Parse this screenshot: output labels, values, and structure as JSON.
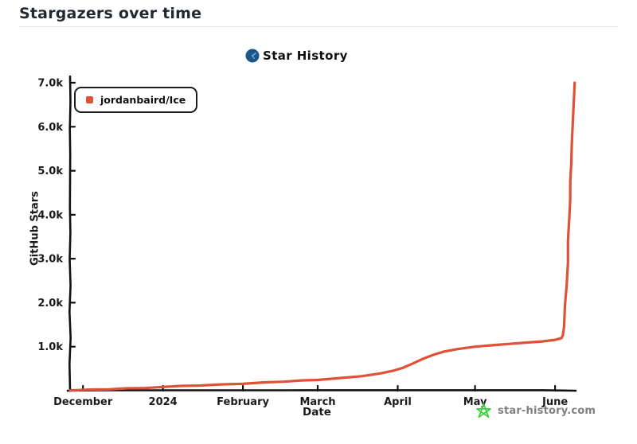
{
  "page": {
    "title": "Stargazers over time"
  },
  "chart": {
    "header_title": "Star History",
    "logo_colors": {
      "circle": "#1d5689",
      "detail": "#7cb0d8"
    },
    "legend": [
      {
        "label": "jordanbaird/Ice",
        "color": "#de5238"
      }
    ],
    "watermark": {
      "text": "star-history.com",
      "star_color": "#38d038"
    }
  },
  "chart_data": {
    "type": "line",
    "title": "Star History",
    "xlabel": "Date",
    "ylabel": "GitHub Stars",
    "legend_position": "top-left",
    "grid": false,
    "ylim": [
      0,
      7000
    ],
    "x_domain_days": [
      -5,
      191
    ],
    "x_ticks": [
      {
        "label": "December",
        "day": 0
      },
      {
        "label": "2024",
        "day": 31
      },
      {
        "label": "February",
        "day": 62
      },
      {
        "label": "March",
        "day": 91
      },
      {
        "label": "April",
        "day": 122
      },
      {
        "label": "May",
        "day": 152
      },
      {
        "label": "June",
        "day": 183
      }
    ],
    "y_ticks": [
      {
        "label": "1.0k",
        "value": 1000
      },
      {
        "label": "2.0k",
        "value": 2000
      },
      {
        "label": "3.0k",
        "value": 3000
      },
      {
        "label": "4.0k",
        "value": 4000
      },
      {
        "label": "5.0k",
        "value": 5000
      },
      {
        "label": "6.0k",
        "value": 6000
      },
      {
        "label": "7.0k",
        "value": 7000
      }
    ],
    "series": [
      {
        "name": "jordanbaird/Ice",
        "color": "#de5238",
        "points_day_stars": [
          [
            -5,
            5
          ],
          [
            10,
            30
          ],
          [
            24,
            60
          ],
          [
            31,
            85
          ],
          [
            45,
            115
          ],
          [
            62,
            155
          ],
          [
            78,
            205
          ],
          [
            91,
            245
          ],
          [
            100,
            290
          ],
          [
            108,
            330
          ],
          [
            115,
            390
          ],
          [
            120,
            450
          ],
          [
            124,
            520
          ],
          [
            128,
            620
          ],
          [
            132,
            730
          ],
          [
            136,
            820
          ],
          [
            140,
            890
          ],
          [
            145,
            945
          ],
          [
            152,
            1000
          ],
          [
            160,
            1040
          ],
          [
            170,
            1085
          ],
          [
            178,
            1120
          ],
          [
            183,
            1155
          ],
          [
            185.5,
            1195
          ],
          [
            186,
            1255
          ],
          [
            186.5,
            1450
          ],
          [
            187.5,
            2400
          ],
          [
            188.5,
            3900
          ],
          [
            189.5,
            5600
          ],
          [
            190.3,
            6600
          ],
          [
            190.6,
            7000
          ]
        ]
      }
    ]
  }
}
